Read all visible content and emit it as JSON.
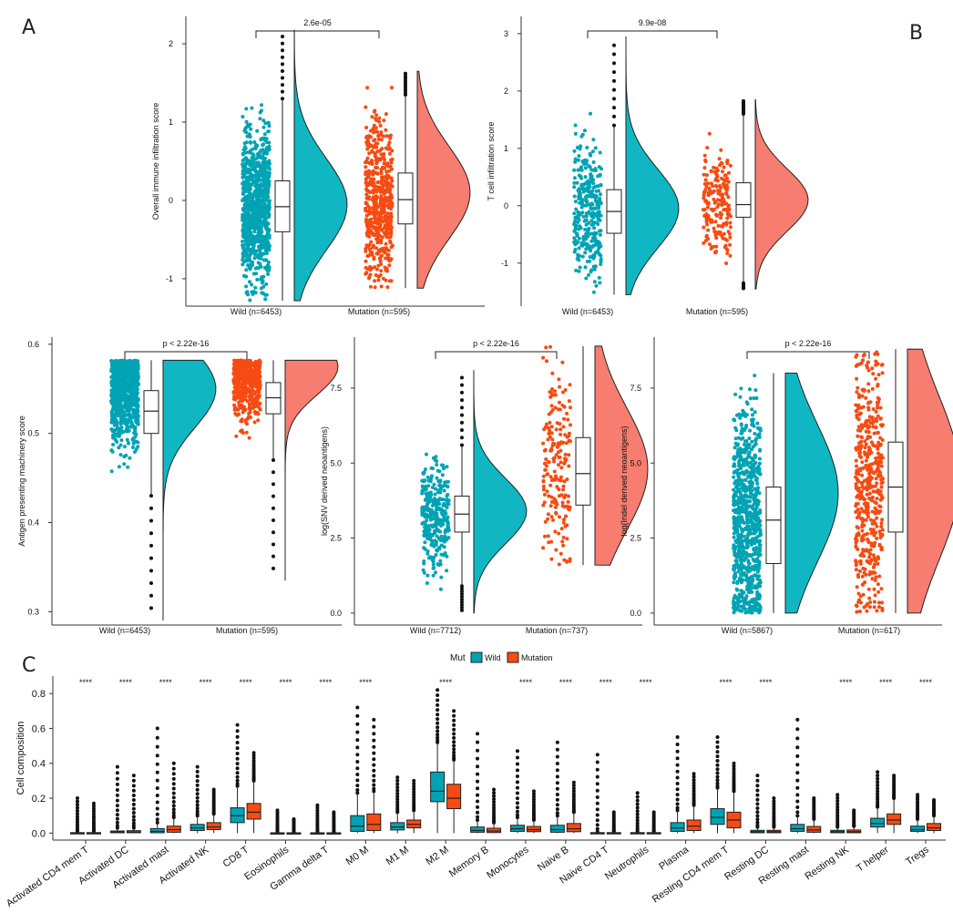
{
  "panel_labels": {
    "a": "A",
    "b": "B",
    "c": "C"
  },
  "colors": {
    "wild": "#00A3B4",
    "mutation": "#F64B12",
    "wild_violin": "#10B7C2",
    "mutation_violin": "#F67D70",
    "box_fill": "#FFFFFF",
    "line": "#222222"
  },
  "legend": {
    "title": "Mut",
    "wild": "Wild",
    "mutation": "Mutation"
  },
  "chart_data": [
    {
      "id": "p1",
      "type": "raincloud",
      "ylabel": "Overall immune infiltration score",
      "ylim": [
        -1.35,
        2.35
      ],
      "yticks": [
        -1,
        0,
        1,
        2
      ],
      "ytick_labels": [
        "-1",
        "0",
        "1",
        "2"
      ],
      "pvalue": "2.6e-05",
      "categories": [
        "Wild (n=6453)",
        "Mutation (n=595)"
      ],
      "groups": [
        {
          "name": "Wild",
          "n": 6453,
          "min": -1.28,
          "q1": -0.4,
          "median": -0.08,
          "q3": 0.25,
          "max": 2.18,
          "whisker_low": -1.28,
          "whisker_high": 1.3,
          "peak": -0.05
        },
        {
          "name": "Mutation",
          "n": 595,
          "min": -1.12,
          "q1": -0.3,
          "median": 0.01,
          "q3": 0.35,
          "max": 1.65,
          "whisker_low": -1.12,
          "whisker_high": 1.35,
          "peak": 0.1
        }
      ]
    },
    {
      "id": "p2",
      "type": "raincloud",
      "ylabel": "T cell infiltration score",
      "ylim": [
        -1.75,
        3.3
      ],
      "yticks": [
        -1,
        0,
        1,
        2,
        3
      ],
      "ytick_labels": [
        "-1",
        "0",
        "1",
        "2",
        "3"
      ],
      "pvalue": "9.9e-08",
      "categories": [
        "Wild (n=6453)",
        "Mutation (n=595)"
      ],
      "groups": [
        {
          "name": "Wild",
          "n": 6453,
          "min": -1.55,
          "q1": -0.48,
          "median": -0.1,
          "q3": 0.28,
          "max": 2.95,
          "whisker_low": -1.55,
          "whisker_high": 1.4,
          "peak": -0.05
        },
        {
          "name": "Mutation",
          "n": 595,
          "min": -1.45,
          "q1": -0.2,
          "median": 0.02,
          "q3": 0.4,
          "max": 1.85,
          "whisker_low": -1.35,
          "whisker_high": 1.6,
          "peak": 0.1
        }
      ]
    },
    {
      "id": "p3",
      "type": "raincloud",
      "ylabel": "Antigen presenting machinery score",
      "ylim": [
        0.285,
        0.608
      ],
      "yticks": [
        0.3,
        0.4,
        0.5,
        0.6
      ],
      "ytick_labels": [
        "0.3",
        "0.4",
        "0.5",
        "0.6"
      ],
      "pvalue": "p < 2.22e-16",
      "categories": [
        "Wild (n=6453)",
        "Mutation (n=595)"
      ],
      "groups": [
        {
          "name": "Wild",
          "n": 6453,
          "min": 0.29,
          "q1": 0.5,
          "median": 0.525,
          "q3": 0.548,
          "max": 0.582,
          "whisker_low": 0.43,
          "whisker_high": 0.582,
          "peak": 0.55
        },
        {
          "name": "Mutation",
          "n": 595,
          "min": 0.335,
          "q1": 0.522,
          "median": 0.54,
          "q3": 0.557,
          "max": 0.582,
          "whisker_low": 0.47,
          "whisker_high": 0.582,
          "peak": 0.575
        }
      ]
    },
    {
      "id": "p4",
      "type": "raincloud",
      "ylabel": "log(SNV derived neoantigens)",
      "ylim": [
        -0.4,
        9.2
      ],
      "yticks": [
        0,
        2.5,
        5,
        7.5
      ],
      "ytick_labels": [
        "0.0",
        "2.5",
        "5.0",
        "7.5"
      ],
      "pvalue": "p < 2.22e-16",
      "categories": [
        "Wild (n=7712)",
        "Mutation (n=737)"
      ],
      "groups": [
        {
          "name": "Wild",
          "n": 7712,
          "min": 0.0,
          "q1": 2.7,
          "median": 3.3,
          "q3": 3.9,
          "max": 8.1,
          "whisker_low": 0.9,
          "whisker_high": 5.6,
          "peak": 3.4
        },
        {
          "name": "Mutation",
          "n": 737,
          "min": 1.6,
          "q1": 3.6,
          "median": 4.65,
          "q3": 5.85,
          "max": 8.9,
          "whisker_low": 1.6,
          "whisker_high": 8.9,
          "peak": 4.8
        }
      ]
    },
    {
      "id": "p5",
      "type": "raincloud",
      "ylabel": "log(Indel derived neoantigens)",
      "ylim": [
        -0.4,
        9.2
      ],
      "yticks": [
        0,
        2.5,
        5,
        7.5
      ],
      "ytick_labels": [
        "0.0",
        "2.5",
        "5.0",
        "7.5"
      ],
      "pvalue": "p < 2.22e-16",
      "categories": [
        "Wild (n=5867)",
        "Mutation (n=617)"
      ],
      "groups": [
        {
          "name": "Wild",
          "n": 5867,
          "min": 0.0,
          "q1": 1.65,
          "median": 3.1,
          "q3": 4.2,
          "max": 8.0,
          "whisker_low": 0.0,
          "whisker_high": 8.0,
          "peak": 4.0
        },
        {
          "name": "Mutation",
          "n": 617,
          "min": 0.0,
          "q1": 2.7,
          "median": 4.2,
          "q3": 5.7,
          "max": 8.8,
          "whisker_low": 0.0,
          "whisker_high": 8.8,
          "peak": 4.5
        }
      ]
    },
    {
      "id": "p6",
      "type": "boxplot",
      "title": "",
      "ylabel": "Cell composition",
      "xlabel": "",
      "ylim": [
        -0.04,
        0.9
      ],
      "yticks": [
        0,
        0.2,
        0.4,
        0.6,
        0.8
      ],
      "ytick_labels": [
        "0.0",
        "0.2",
        "0.4",
        "0.6",
        "0.8"
      ],
      "series": [
        {
          "name": "Wild"
        },
        {
          "name": "Mutation"
        }
      ],
      "categories": [
        "Activated CD4 mem T",
        "Activated DC",
        "Activated mast",
        "Activated NK",
        "CD8 T",
        "Eosinophils",
        "Gamma delta T",
        "M0 M",
        "M1 M",
        "M2 M",
        "Memory B",
        "Monocytes",
        "Naive B",
        "Naive CD4 T",
        "Neutrophils",
        "Plasma",
        "Resting CD4 mem T",
        "Resting DC",
        "Resting mast",
        "Resting NK",
        "T helper",
        "Tregs"
      ],
      "significance": [
        "****",
        "****",
        "****",
        "****",
        "****",
        "****",
        "****",
        "****",
        "",
        "****",
        "",
        "****",
        "****",
        "****",
        "****",
        "",
        "****",
        "****",
        "",
        "****",
        "****",
        "****"
      ],
      "wild": [
        {
          "q1": 0.0,
          "median": 0.0,
          "q3": 0.003,
          "wlow": 0.0,
          "whigh": 0.01,
          "omax": 0.2
        },
        {
          "q1": 0.002,
          "median": 0.006,
          "q3": 0.012,
          "wlow": 0.0,
          "whigh": 0.03,
          "omax": 0.38
        },
        {
          "q1": 0.002,
          "median": 0.01,
          "q3": 0.026,
          "wlow": 0.0,
          "whigh": 0.06,
          "omax": 0.6
        },
        {
          "q1": 0.015,
          "median": 0.03,
          "q3": 0.05,
          "wlow": 0.0,
          "whigh": 0.1,
          "omax": 0.38
        },
        {
          "q1": 0.06,
          "median": 0.1,
          "q3": 0.145,
          "wlow": 0.0,
          "whigh": 0.27,
          "omax": 0.62
        },
        {
          "q1": 0.0,
          "median": 0.0,
          "q3": 0.002,
          "wlow": 0.0,
          "whigh": 0.005,
          "omax": 0.13
        },
        {
          "q1": 0.0,
          "median": 0.0,
          "q3": 0.002,
          "wlow": 0.0,
          "whigh": 0.005,
          "omax": 0.16
        },
        {
          "q1": 0.01,
          "median": 0.04,
          "q3": 0.1,
          "wlow": 0.0,
          "whigh": 0.23,
          "omax": 0.72
        },
        {
          "q1": 0.018,
          "median": 0.035,
          "q3": 0.06,
          "wlow": 0.0,
          "whigh": 0.12,
          "omax": 0.32
        },
        {
          "q1": 0.18,
          "median": 0.24,
          "q3": 0.35,
          "wlow": 0.0,
          "whigh": 0.52,
          "omax": 0.82
        },
        {
          "q1": 0.005,
          "median": 0.015,
          "q3": 0.035,
          "wlow": 0.0,
          "whigh": 0.075,
          "omax": 0.57
        },
        {
          "q1": 0.01,
          "median": 0.025,
          "q3": 0.045,
          "wlow": 0.0,
          "whigh": 0.09,
          "omax": 0.47
        },
        {
          "q1": 0.005,
          "median": 0.02,
          "q3": 0.045,
          "wlow": 0.0,
          "whigh": 0.1,
          "omax": 0.52
        },
        {
          "q1": 0.0,
          "median": 0.0,
          "q3": 0.003,
          "wlow": 0.0,
          "whigh": 0.008,
          "omax": 0.45
        },
        {
          "q1": 0.0,
          "median": 0.0,
          "q3": 0.003,
          "wlow": 0.0,
          "whigh": 0.008,
          "omax": 0.23
        },
        {
          "q1": 0.01,
          "median": 0.03,
          "q3": 0.06,
          "wlow": 0.0,
          "whigh": 0.13,
          "omax": 0.55
        },
        {
          "q1": 0.05,
          "median": 0.09,
          "q3": 0.14,
          "wlow": 0.0,
          "whigh": 0.26,
          "omax": 0.55
        },
        {
          "q1": 0.002,
          "median": 0.008,
          "q3": 0.016,
          "wlow": 0.0,
          "whigh": 0.035,
          "omax": 0.33
        },
        {
          "q1": 0.01,
          "median": 0.025,
          "q3": 0.05,
          "wlow": 0.0,
          "whigh": 0.1,
          "omax": 0.65
        },
        {
          "q1": 0.002,
          "median": 0.008,
          "q3": 0.016,
          "wlow": 0.0,
          "whigh": 0.035,
          "omax": 0.22
        },
        {
          "q1": 0.035,
          "median": 0.055,
          "q3": 0.085,
          "wlow": 0.0,
          "whigh": 0.15,
          "omax": 0.35
        },
        {
          "q1": 0.01,
          "median": 0.02,
          "q3": 0.04,
          "wlow": 0.0,
          "whigh": 0.08,
          "omax": 0.22
        }
      ],
      "mutation": [
        {
          "q1": 0.0,
          "median": 0.0,
          "q3": 0.003,
          "wlow": 0.0,
          "whigh": 0.01,
          "omax": 0.17
        },
        {
          "q1": 0.002,
          "median": 0.006,
          "q3": 0.014,
          "wlow": 0.0,
          "whigh": 0.03,
          "omax": 0.33
        },
        {
          "q1": 0.005,
          "median": 0.02,
          "q3": 0.04,
          "wlow": 0.0,
          "whigh": 0.09,
          "omax": 0.4
        },
        {
          "q1": 0.02,
          "median": 0.035,
          "q3": 0.06,
          "wlow": 0.0,
          "whigh": 0.11,
          "omax": 0.25
        },
        {
          "q1": 0.08,
          "median": 0.12,
          "q3": 0.17,
          "wlow": 0.0,
          "whigh": 0.3,
          "omax": 0.46
        },
        {
          "q1": 0.0,
          "median": 0.0,
          "q3": 0.002,
          "wlow": 0.0,
          "whigh": 0.005,
          "omax": 0.08
        },
        {
          "q1": 0.0,
          "median": 0.0,
          "q3": 0.002,
          "wlow": 0.0,
          "whigh": 0.005,
          "omax": 0.12
        },
        {
          "q1": 0.015,
          "median": 0.05,
          "q3": 0.11,
          "wlow": 0.0,
          "whigh": 0.24,
          "omax": 0.65
        },
        {
          "q1": 0.03,
          "median": 0.05,
          "q3": 0.075,
          "wlow": 0.0,
          "whigh": 0.13,
          "omax": 0.3
        },
        {
          "q1": 0.14,
          "median": 0.2,
          "q3": 0.28,
          "wlow": 0.0,
          "whigh": 0.42,
          "omax": 0.7
        },
        {
          "q1": 0.003,
          "median": 0.012,
          "q3": 0.028,
          "wlow": 0.0,
          "whigh": 0.06,
          "omax": 0.25
        },
        {
          "q1": 0.008,
          "median": 0.02,
          "q3": 0.038,
          "wlow": 0.0,
          "whigh": 0.075,
          "omax": 0.24
        },
        {
          "q1": 0.008,
          "median": 0.025,
          "q3": 0.055,
          "wlow": 0.0,
          "whigh": 0.12,
          "omax": 0.29
        },
        {
          "q1": 0.0,
          "median": 0.0,
          "q3": 0.003,
          "wlow": 0.0,
          "whigh": 0.008,
          "omax": 0.12
        },
        {
          "q1": 0.0,
          "median": 0.0,
          "q3": 0.003,
          "wlow": 0.0,
          "whigh": 0.008,
          "omax": 0.12
        },
        {
          "q1": 0.015,
          "median": 0.04,
          "q3": 0.075,
          "wlow": 0.0,
          "whigh": 0.16,
          "omax": 0.34
        },
        {
          "q1": 0.03,
          "median": 0.075,
          "q3": 0.12,
          "wlow": 0.0,
          "whigh": 0.24,
          "omax": 0.4
        },
        {
          "q1": 0.002,
          "median": 0.008,
          "q3": 0.016,
          "wlow": 0.0,
          "whigh": 0.035,
          "omax": 0.2
        },
        {
          "q1": 0.005,
          "median": 0.018,
          "q3": 0.038,
          "wlow": 0.0,
          "whigh": 0.08,
          "omax": 0.2
        },
        {
          "q1": 0.002,
          "median": 0.008,
          "q3": 0.018,
          "wlow": 0.0,
          "whigh": 0.04,
          "omax": 0.13
        },
        {
          "q1": 0.05,
          "median": 0.075,
          "q3": 0.11,
          "wlow": 0.0,
          "whigh": 0.2,
          "omax": 0.33
        },
        {
          "q1": 0.015,
          "median": 0.03,
          "q3": 0.055,
          "wlow": 0.0,
          "whigh": 0.1,
          "omax": 0.19
        }
      ]
    }
  ]
}
